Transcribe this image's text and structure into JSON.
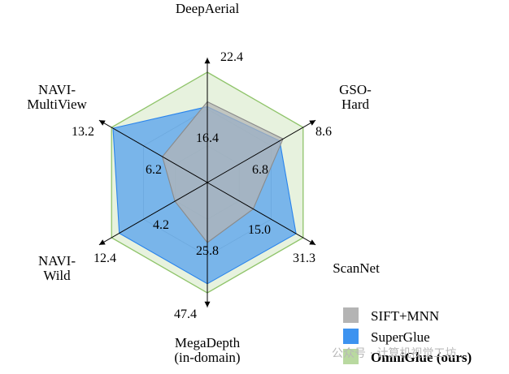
{
  "chart_data": {
    "type": "radar",
    "axes": [
      {
        "label_lines": [
          "DeepAerial"
        ],
        "max_label": "22.4",
        "max": 22.4
      },
      {
        "label_lines": [
          "GSO-",
          "Hard"
        ],
        "max_label": "8.6",
        "max": 8.6
      },
      {
        "label_lines": [
          "ScanNet"
        ],
        "max_label": "31.3",
        "max": 31.3
      },
      {
        "label_lines": [
          "MegaDepth",
          "(in-domain)"
        ],
        "max_label": "47.4",
        "max": 47.4
      },
      {
        "label_lines": [
          "NAVI-",
          "Wild"
        ],
        "max_label": "12.4",
        "max": 12.4
      },
      {
        "label_lines": [
          "NAVI-",
          "MultiView"
        ],
        "max_label": "13.2",
        "max": 13.2
      }
    ],
    "series": [
      {
        "name": "SIFT+MNN",
        "color": "#b4b4b4",
        "values": [
          16.4,
          6.8,
          15.0,
          25.8,
          4.2,
          6.2
        ],
        "value_labels": [
          "16.4",
          "6.8",
          "15.0",
          "25.8",
          "4.2",
          "6.2"
        ]
      },
      {
        "name": "SuperGlue",
        "color": "#3d93f0",
        "values": [
          15.4,
          6.5,
          29.0,
          43.5,
          11.4,
          13.0
        ]
      },
      {
        "name": "OmniGlue (ours)",
        "color": "#b9d9a0",
        "values": [
          22.4,
          8.6,
          31.3,
          47.4,
          12.4,
          13.2
        ],
        "bold": true
      }
    ],
    "grid": true,
    "legend_position": "bottom-right"
  },
  "watermark": "公众号 · 计算机视觉工坊"
}
